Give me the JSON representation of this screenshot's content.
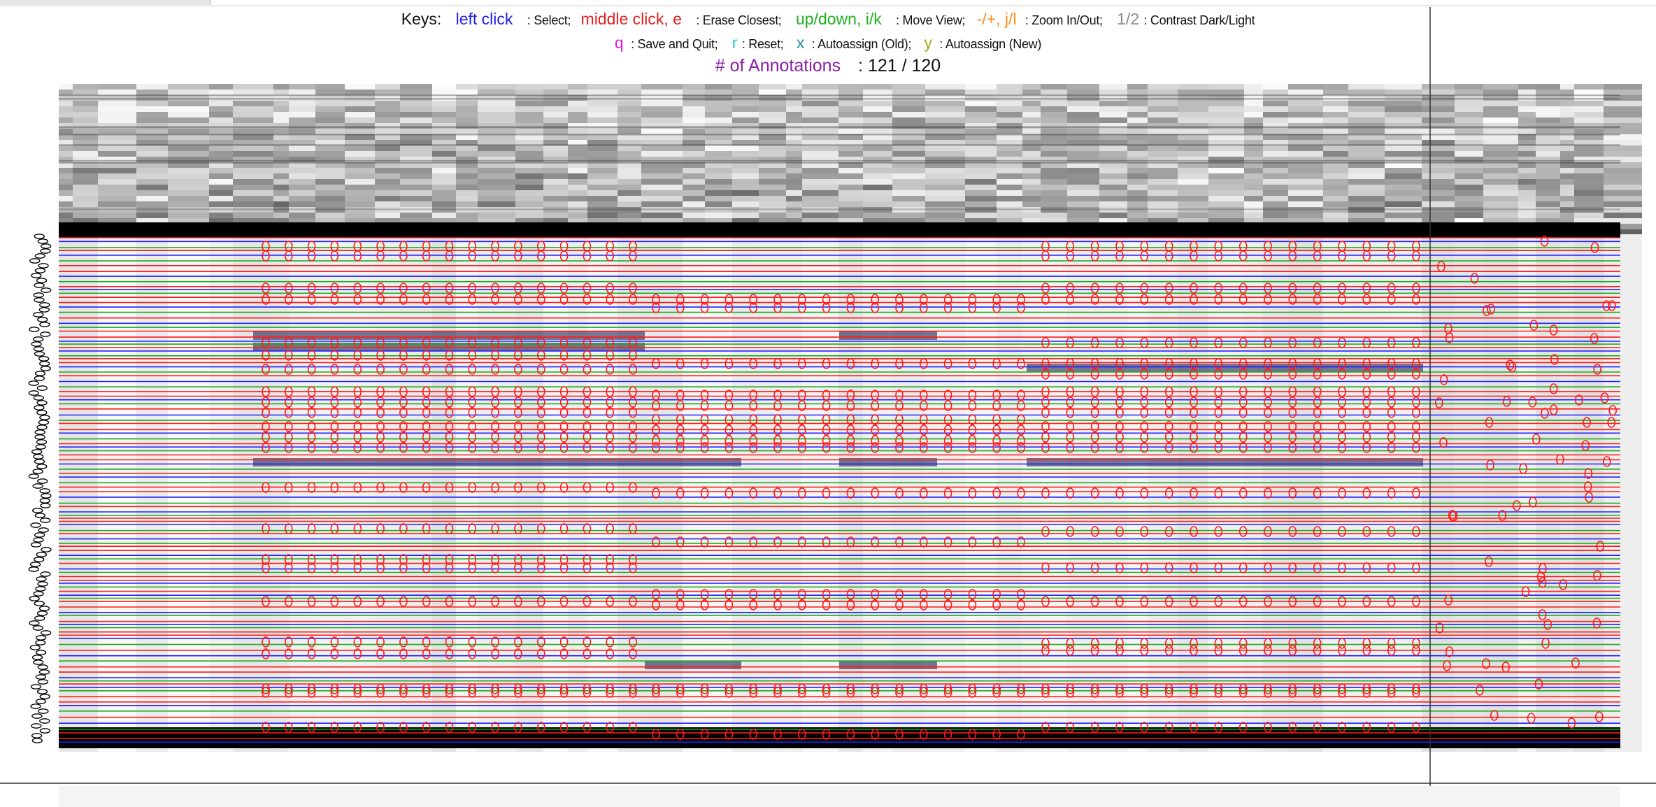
{
  "keys": {
    "label": "Keys:",
    "select_key": "left click",
    "select_desc": ": Select;",
    "erase_key": "middle click, e",
    "erase_desc": ": Erase Closest;",
    "move_key": "up/down, i/k",
    "move_desc": ": Move View;",
    "zoom_key": "-/+, j/l",
    "zoom_desc": ": Zoom In/Out;",
    "contrast_key": "1/2",
    "contrast_desc": ": Contrast Dark/Light",
    "quit_key": "q",
    "quit_desc": ": Save and Quit;",
    "reset_key": "r",
    "reset_desc": ": Reset;",
    "auto_old_key": "x",
    "auto_old_desc": ": Autoassign (Old);",
    "auto_new_key": "y",
    "auto_new_desc": ": Autoassign (New)"
  },
  "annotations": {
    "label": "# of Annotations",
    "value": ": 121 / 120"
  },
  "colors": {
    "select": "#1f1fe0",
    "erase": "#e0201f",
    "move": "#1fae1f",
    "zoom": "#ff8c1a",
    "contrast": "#8a8a8a",
    "quit": "#e01fe0",
    "reset": "#1fc8e0",
    "auto_old": "#1f8fa8",
    "auto_new": "#a8a81f",
    "annotations": "#8a1fa8",
    "marker": "#ff1a1a"
  },
  "icons": {
    "annotation_marker": "red-oval-marker-icon",
    "cursor": "crosshair-cursor-icon"
  }
}
